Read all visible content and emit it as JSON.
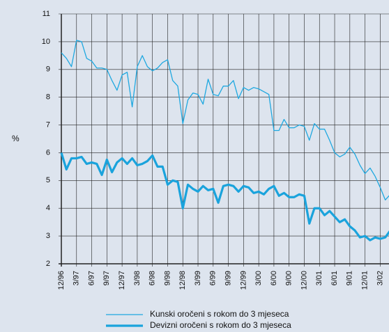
{
  "chart_data": {
    "type": "line",
    "y_label": "%",
    "categories": [
      "12/96",
      null,
      null,
      "3/97",
      null,
      null,
      "6/97",
      null,
      null,
      "9/97",
      null,
      null,
      "12/97",
      null,
      null,
      "3/98",
      null,
      null,
      "6/98",
      null,
      null,
      "9/98",
      null,
      null,
      "12/98",
      null,
      null,
      "3/99",
      null,
      null,
      "6/99",
      null,
      null,
      "9/99",
      null,
      null,
      "12/99",
      null,
      null,
      "3/00",
      null,
      null,
      "6/00",
      null,
      null,
      "9/00",
      null,
      null,
      "12/00",
      null,
      null,
      "3/01",
      null,
      null,
      "6/01",
      null,
      null,
      "9/01",
      null,
      null,
      "12/01",
      null,
      null,
      "3/02",
      null,
      null
    ],
    "series": [
      {
        "name": "Kunski oročeni s rokom do 3 mjeseca",
        "color": "#1fa8e0",
        "width": 1.3,
        "values": [
          9.6,
          9.4,
          9.1,
          10.05,
          10.0,
          9.4,
          9.3,
          9.05,
          9.05,
          9.0,
          8.6,
          8.25,
          8.8,
          8.9,
          7.65,
          9.1,
          9.5,
          9.1,
          8.95,
          9.05,
          9.25,
          9.35,
          8.6,
          8.4,
          7.05,
          7.9,
          8.15,
          8.1,
          7.75,
          8.65,
          8.1,
          8.05,
          8.4,
          8.4,
          8.6,
          7.95,
          8.35,
          8.25,
          8.35,
          8.3,
          8.2,
          8.1,
          6.8,
          6.8,
          7.2,
          6.9,
          6.9,
          7.0,
          6.95,
          6.45,
          7.05,
          6.85,
          6.85,
          6.45,
          6.0,
          5.85,
          5.95,
          6.2,
          5.95,
          5.55,
          5.25,
          5.45,
          5.15,
          4.75,
          4.3,
          4.5
        ]
      },
      {
        "name": "Devizni oročeni s rokom do 3 mjeseca",
        "color": "#1aa3dc",
        "width": 3.2,
        "values": [
          6.0,
          5.4,
          5.8,
          5.8,
          5.85,
          5.6,
          5.65,
          5.6,
          5.2,
          5.75,
          5.3,
          5.65,
          5.8,
          5.6,
          5.8,
          5.55,
          5.6,
          5.7,
          5.9,
          5.5,
          5.5,
          4.85,
          5.0,
          4.95,
          4.0,
          4.85,
          4.7,
          4.6,
          4.8,
          4.65,
          4.7,
          4.2,
          4.8,
          4.85,
          4.8,
          4.6,
          4.8,
          4.75,
          4.55,
          4.6,
          4.5,
          4.7,
          4.8,
          4.45,
          4.55,
          4.4,
          4.4,
          4.5,
          4.45,
          3.45,
          4.0,
          4.0,
          3.75,
          3.9,
          3.7,
          3.5,
          3.6,
          3.35,
          3.2,
          2.95,
          3.0,
          2.85,
          2.95,
          2.9,
          2.95,
          3.2
        ]
      }
    ],
    "ylim": [
      2,
      11
    ],
    "yticks": [
      2,
      3,
      4,
      5,
      6,
      7,
      8,
      9,
      10,
      11
    ],
    "grid": true
  }
}
